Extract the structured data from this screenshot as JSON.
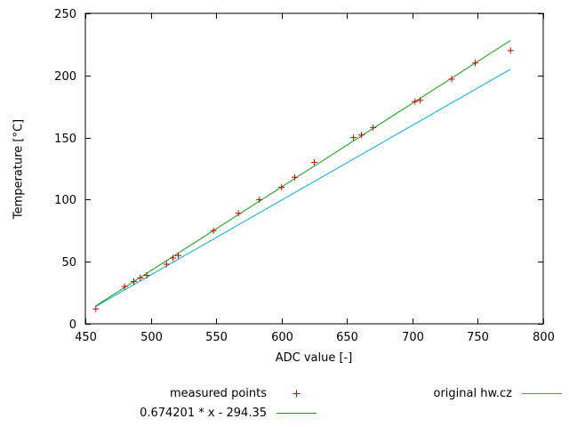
{
  "chart_data": {
    "type": "scatter",
    "title": "",
    "xlabel": "ADC value [-]",
    "ylabel": "Temperature [°C]",
    "xlim": [
      450,
      800
    ],
    "ylim": [
      0,
      250
    ],
    "xticks": [
      450,
      500,
      550,
      600,
      650,
      700,
      750,
      800
    ],
    "yticks": [
      0,
      50,
      100,
      150,
      200,
      250
    ],
    "grid": false,
    "legend_position": "below-plot",
    "series": [
      {
        "name": "measured points",
        "type": "scatter",
        "marker": "plus",
        "color": "#d00000",
        "points": [
          [
            458,
            12
          ],
          [
            480,
            30
          ],
          [
            487,
            34
          ],
          [
            492,
            37
          ],
          [
            497,
            39
          ],
          [
            512,
            48
          ],
          [
            517,
            53
          ],
          [
            521,
            55
          ],
          [
            548,
            75
          ],
          [
            567,
            89
          ],
          [
            583,
            100
          ],
          [
            600,
            110
          ],
          [
            610,
            118
          ],
          [
            625,
            130
          ],
          [
            655,
            150
          ],
          [
            661,
            152
          ],
          [
            670,
            158
          ],
          [
            702,
            179
          ],
          [
            706,
            180
          ],
          [
            730,
            197
          ],
          [
            748,
            210
          ],
          [
            775,
            220
          ]
        ]
      },
      {
        "name": "0.674201 * x - 294.35",
        "type": "line",
        "color": "#00a000",
        "slope": 0.674201,
        "intercept": -294.35,
        "points": [
          [
            458,
            14.43
          ],
          [
            775,
            228.16
          ]
        ]
      },
      {
        "name": "original hw.cz",
        "type": "line",
        "color": "#00aadd",
        "points": [
          [
            458,
            14
          ],
          [
            775,
            205
          ]
        ]
      }
    ]
  },
  "colors": {
    "axis": "#000000",
    "background": "#ffffff",
    "measured": "#d00000",
    "fit": "#00a000",
    "original": "#00aadd"
  }
}
